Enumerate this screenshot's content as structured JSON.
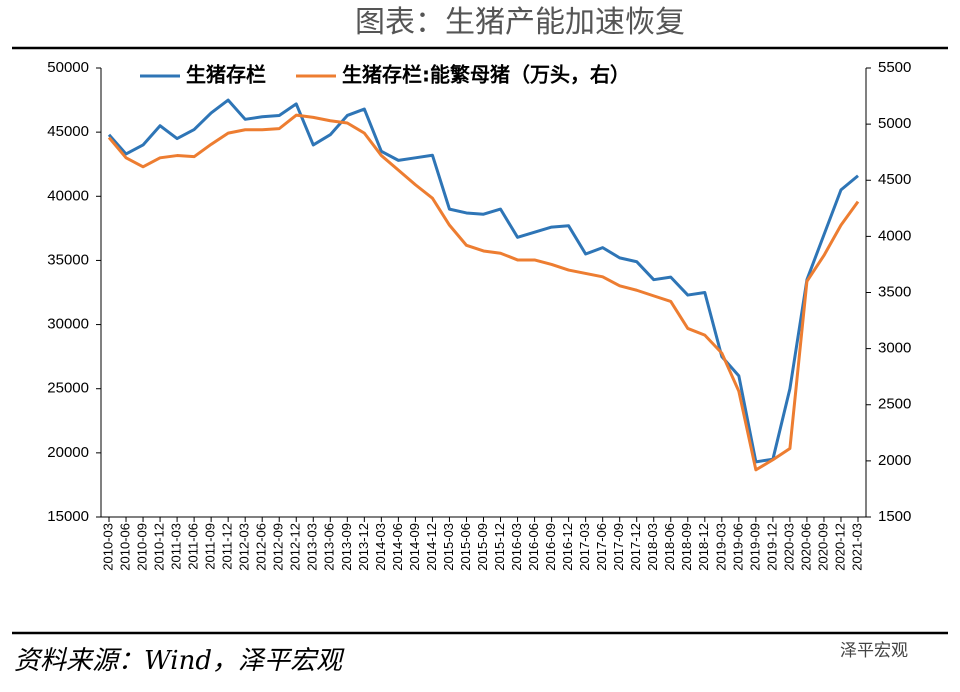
{
  "chart_data": {
    "type": "line",
    "title": "图表：生猪产能加速恢复",
    "source": "资料来源：Wind，泽平宏观",
    "watermark": "泽平宏观",
    "categories": [
      "2010-03",
      "2010-06",
      "2010-09",
      "2010-12",
      "2011-03",
      "2011-06",
      "2011-09",
      "2011-12",
      "2012-03",
      "2012-06",
      "2012-09",
      "2012-12",
      "2013-03",
      "2013-06",
      "2013-09",
      "2013-12",
      "2014-03",
      "2014-06",
      "2014-09",
      "2014-12",
      "2015-03",
      "2015-06",
      "2015-09",
      "2015-12",
      "2016-03",
      "2016-06",
      "2016-09",
      "2016-12",
      "2017-03",
      "2017-06",
      "2017-09",
      "2017-12",
      "2018-03",
      "2018-06",
      "2018-09",
      "2018-12",
      "2019-03",
      "2019-06",
      "2019-09",
      "2019-12",
      "2020-03",
      "2020-06",
      "2020-09",
      "2020-12",
      "2021-03"
    ],
    "series": [
      {
        "name": "生猪存栏",
        "color": "#2e75b6",
        "values": [
          44800,
          43300,
          44000,
          45500,
          44500,
          45200,
          46500,
          47500,
          46000,
          46200,
          46300,
          47200,
          44000,
          44800,
          46300,
          46800,
          43500,
          42800,
          43000,
          43200,
          39000,
          38700,
          38600,
          39000,
          36800,
          37200,
          37600,
          37700,
          35500,
          36000,
          35200,
          34900,
          33500,
          33700,
          32300,
          32500,
          27500,
          26000,
          19300,
          19500,
          25000,
          33500,
          37000,
          40500,
          41600
        ]
      },
      {
        "name": "生猪存栏:能繁母猪（万头，右）",
        "color": "#ed7d31",
        "axis": "y2",
        "values": [
          4880,
          4700,
          4620,
          4700,
          4720,
          4710,
          4820,
          4920,
          4950,
          4950,
          4960,
          5080,
          5060,
          5030,
          5010,
          4920,
          4720,
          4590,
          4460,
          4340,
          4100,
          3920,
          3870,
          3850,
          3790,
          3790,
          3750,
          3700,
          3670,
          3640,
          3560,
          3520,
          3470,
          3420,
          3180,
          3120,
          2960,
          2620,
          1920,
          2010,
          2110,
          3600,
          3830,
          4100,
          4310
        ]
      }
    ],
    "ylim": [
      15000,
      50000
    ],
    "yticks": [
      15000,
      20000,
      25000,
      30000,
      35000,
      40000,
      45000,
      50000
    ],
    "y2lim": [
      1500,
      5500
    ],
    "y2ticks": [
      1500,
      2000,
      2500,
      3000,
      3500,
      4000,
      4500,
      5000,
      5500
    ],
    "legend": "top"
  }
}
